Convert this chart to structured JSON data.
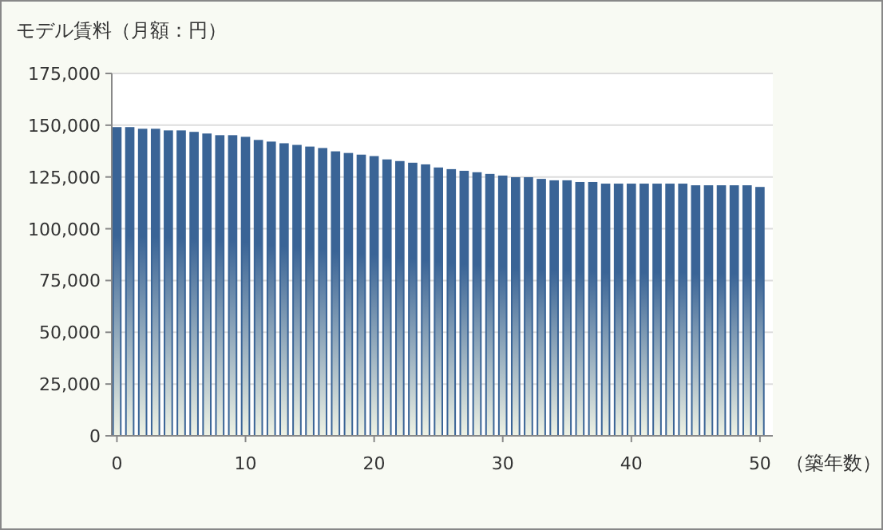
{
  "chart_data": {
    "type": "bar",
    "title": "モデル賃料（月額：円）",
    "xlabel": "（築年数）",
    "x": [
      0,
      1,
      2,
      3,
      4,
      5,
      6,
      7,
      8,
      9,
      10,
      11,
      12,
      13,
      14,
      15,
      16,
      17,
      18,
      19,
      20,
      21,
      22,
      23,
      24,
      25,
      26,
      27,
      28,
      29,
      30,
      31,
      32,
      33,
      34,
      35,
      36,
      37,
      38,
      39,
      40,
      41,
      42,
      43,
      44,
      45,
      46,
      47,
      48,
      49,
      50
    ],
    "series": [
      {
        "color": "#3a6496",
        "values": [
          148700,
          148700,
          147900,
          147900,
          147100,
          147100,
          146400,
          145600,
          144800,
          144800,
          144000,
          142500,
          141700,
          140900,
          140100,
          139300,
          138600,
          137000,
          136200,
          135400,
          134700,
          133100,
          132300,
          131500,
          130700,
          129200,
          128400,
          127600,
          126900,
          126100,
          125300,
          124500,
          124500,
          123700,
          123000,
          123000,
          122200,
          122200,
          121400,
          121400,
          121400,
          121400,
          121400,
          121400,
          121400,
          120600,
          120600,
          120600,
          120600,
          120600,
          119800
        ]
      }
    ],
    "xlim": [
      -0.4,
      51
    ],
    "xticks": [
      0,
      10,
      20,
      30,
      40,
      50
    ],
    "ylim": [
      0,
      175000
    ],
    "yticks": [
      0,
      {
        "value": 25000,
        "label": "25,000"
      },
      {
        "value": 50000,
        "label": "50,000"
      },
      {
        "value": 75000,
        "label": "75,000"
      },
      {
        "value": 100000,
        "label": "100,000"
      },
      {
        "value": 125000,
        "label": "125,000"
      },
      {
        "value": 150000,
        "label": "150,000"
      },
      {
        "value": 175000,
        "label": "175,000"
      }
    ],
    "grid": "y"
  }
}
